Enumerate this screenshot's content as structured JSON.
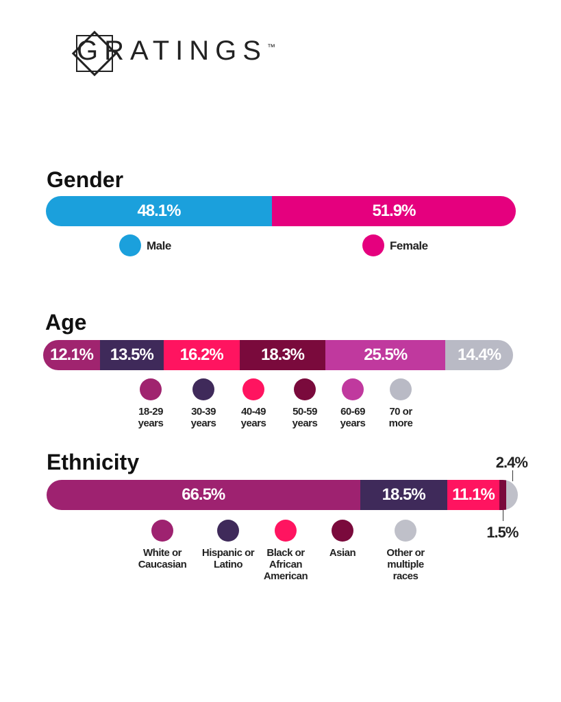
{
  "logo": "GRATINGS",
  "logo_mark": "™",
  "chart_data": [
    {
      "type": "stacked-bar",
      "title": "Gender",
      "xlim": [
        0,
        100
      ],
      "series": [
        {
          "name": "Male",
          "color": "#1ba0dc",
          "values": [
            48.1
          ],
          "value_labels": [
            "48.1%"
          ]
        },
        {
          "name": "Female",
          "color": "#e5007e",
          "values": [
            51.9
          ],
          "value_labels": [
            "51.9%"
          ]
        }
      ]
    },
    {
      "type": "stacked-bar",
      "title": "Age",
      "xlim": [
        0,
        100
      ],
      "series": [
        {
          "name": "18-29 years",
          "color": "#a0246f",
          "values": [
            12.1
          ],
          "value_labels": [
            "12.1%"
          ]
        },
        {
          "name": "30-39 years",
          "color": "#3f2a5a",
          "values": [
            13.5
          ],
          "value_labels": [
            "13.5%"
          ]
        },
        {
          "name": "40-49 years",
          "color": "#ff1460",
          "values": [
            16.2
          ],
          "value_labels": [
            "16.2%"
          ]
        },
        {
          "name": "50-59 years",
          "color": "#7a0a3c",
          "values": [
            18.3
          ],
          "value_labels": [
            "18.3%"
          ]
        },
        {
          "name": "60-69 years",
          "color": "#c0399e",
          "values": [
            25.5
          ],
          "value_labels": [
            "25.5%"
          ]
        },
        {
          "name": "70 or more",
          "color": "#b9bac5",
          "values": [
            14.4
          ],
          "value_labels": [
            "14.4%"
          ]
        }
      ]
    },
    {
      "type": "stacked-bar",
      "title": "Ethnicity",
      "xlim": [
        0,
        100
      ],
      "series": [
        {
          "name": "White or Caucasian",
          "color": "#9e2270",
          "values": [
            66.5
          ],
          "value_labels": [
            "66.5%"
          ]
        },
        {
          "name": "Hispanic or Latino",
          "color": "#3f2a5a",
          "values": [
            18.5
          ],
          "value_labels": [
            "18.5%"
          ]
        },
        {
          "name": "Black or African American",
          "color": "#ff1460",
          "values": [
            11.1
          ],
          "value_labels": [
            "11.1%"
          ]
        },
        {
          "name": "Asian",
          "color": "#7a0a3c",
          "values": [
            1.5
          ],
          "value_labels": [
            "1.5%"
          ]
        },
        {
          "name": "Other or multiple races",
          "color": "#bfc0c9",
          "values": [
            2.4
          ],
          "value_labels": [
            "2.4%"
          ]
        }
      ]
    }
  ]
}
